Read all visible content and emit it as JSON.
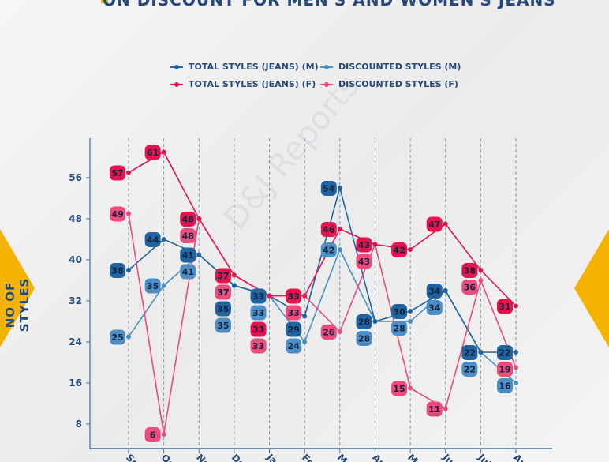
{
  "title": "ON DISCOUNT FOR MEN'S AND WOMEN'S JEANS",
  "watermark": "D&J Reports",
  "colors": {
    "total_m": "#1f64a0",
    "disc_m": "#4b8fc6",
    "total_f": "#e8124f",
    "disc_f": "#ee4a7b",
    "axis": "#4a6a9a",
    "text": "#24497e",
    "accent": "#f5b301"
  },
  "chart_data": {
    "type": "line",
    "ylabel": "NO OF STYLES",
    "xlabel": "",
    "categories": [
      "Sep",
      "Oct",
      "Nov",
      "Dec",
      "Jan",
      "Feb",
      "Mar",
      "Apr",
      "May",
      "Jun",
      "Jul",
      "Aug"
    ],
    "yticks": [
      8,
      16,
      24,
      32,
      40,
      48,
      56
    ],
    "grid": "vertical dashed",
    "legend": "top",
    "series": [
      {
        "name": "TOTAL STYLES (JEANS) (M)",
        "key": "total_m",
        "values": [
          38,
          44,
          41,
          35,
          33,
          29,
          54,
          28,
          30,
          34,
          22,
          22
        ]
      },
      {
        "name": "DISCOUNTED STYLES (M)",
        "key": "disc_m",
        "values": [
          25,
          35,
          41,
          35,
          33,
          24,
          42,
          28,
          28,
          34,
          22,
          16
        ]
      },
      {
        "name": "TOTAL STYLES (JEANS) (F)",
        "key": "total_f",
        "values": [
          57,
          61,
          48,
          37,
          33,
          33,
          46,
          43,
          42,
          47,
          38,
          31
        ]
      },
      {
        "name": "DISCOUNTED STYLES (F)",
        "key": "disc_f",
        "values": [
          49,
          6,
          48,
          37,
          33,
          33,
          26,
          43,
          15,
          11,
          36,
          19
        ]
      }
    ]
  }
}
